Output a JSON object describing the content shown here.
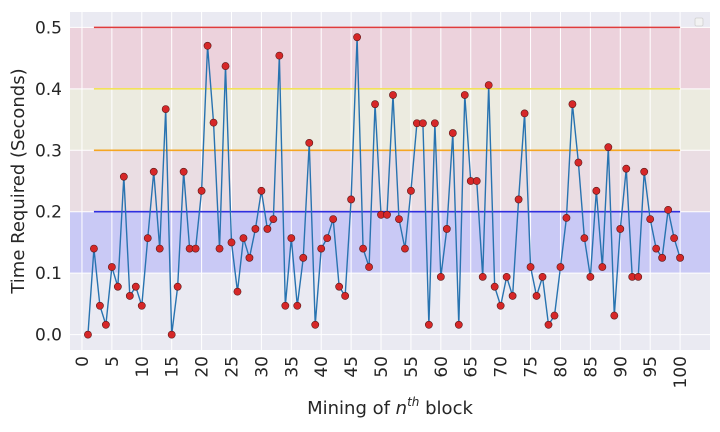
{
  "chart_data": {
    "type": "line",
    "title": "",
    "xlabel": "Mining of n^th block",
    "xlabel_parts": {
      "prefix": "Mining of ",
      "n": "n",
      "sup": "th",
      "suffix": " block"
    },
    "ylabel": "Time Required (Seconds)",
    "xlim": [
      -2,
      105
    ],
    "ylim": [
      -0.025,
      0.525
    ],
    "x_ticks": [
      0,
      5,
      10,
      15,
      20,
      25,
      30,
      35,
      40,
      45,
      50,
      55,
      60,
      65,
      70,
      75,
      80,
      85,
      90,
      95,
      100
    ],
    "y_ticks": [
      0.0,
      0.1,
      0.2,
      0.3,
      0.4,
      0.5
    ],
    "grid": true,
    "legend": "top-right",
    "line_color": "#2873b0",
    "marker_color": "#d62728",
    "bands": [
      {
        "from": 0.1,
        "to": 0.2,
        "color": "#c9c9f5"
      },
      {
        "from": 0.2,
        "to": 0.3,
        "color": "#eadde3"
      },
      {
        "from": 0.3,
        "to": 0.4,
        "color": "#ecebe0"
      },
      {
        "from": 0.4,
        "to": 0.5,
        "color": "#ecd2dc"
      }
    ],
    "thresholds": [
      {
        "y": 0.2,
        "color": "#2f2fe0"
      },
      {
        "y": 0.3,
        "color": "#f5a623"
      },
      {
        "y": 0.4,
        "color": "#f2e25a"
      },
      {
        "y": 0.5,
        "color": "#e03c3c"
      }
    ],
    "threshold_x": [
      2,
      100
    ],
    "x": [
      1,
      2,
      3,
      4,
      5,
      6,
      7,
      8,
      9,
      10,
      11,
      12,
      13,
      14,
      15,
      16,
      17,
      18,
      19,
      20,
      21,
      22,
      23,
      24,
      25,
      26,
      27,
      28,
      29,
      30,
      31,
      32,
      33,
      34,
      35,
      36,
      37,
      38,
      39,
      40,
      41,
      42,
      43,
      44,
      45,
      46,
      47,
      48,
      49,
      50,
      51,
      52,
      53,
      54,
      55,
      56,
      57,
      58,
      59,
      60,
      61,
      62,
      63,
      64,
      65,
      66,
      67,
      68,
      69,
      70,
      71,
      72,
      73,
      74,
      75,
      76,
      77,
      78,
      79,
      80,
      81,
      82,
      83,
      84,
      85,
      86,
      87,
      88,
      89,
      90,
      91,
      92,
      93,
      94,
      95,
      96,
      97,
      98,
      99,
      100
    ],
    "y": [
      0.0,
      0.14,
      0.047,
      0.016,
      0.11,
      0.078,
      0.257,
      0.063,
      0.078,
      0.047,
      0.157,
      0.265,
      0.14,
      0.367,
      0.0,
      0.078,
      0.265,
      0.14,
      0.14,
      0.234,
      0.47,
      0.345,
      0.14,
      0.437,
      0.15,
      0.07,
      0.157,
      0.125,
      0.172,
      0.234,
      0.172,
      0.188,
      0.454,
      0.047,
      0.157,
      0.047,
      0.125,
      0.312,
      0.016,
      0.14,
      0.157,
      0.188,
      0.078,
      0.063,
      0.22,
      0.484,
      0.14,
      0.11,
      0.375,
      0.195,
      0.195,
      0.39,
      0.188,
      0.14,
      0.234,
      0.344,
      0.344,
      0.016,
      0.344,
      0.094,
      0.172,
      0.328,
      0.016,
      0.39,
      0.25,
      0.25,
      0.094,
      0.406,
      0.078,
      0.047,
      0.094,
      0.063,
      0.22,
      0.36,
      0.11,
      0.063,
      0.094,
      0.016,
      0.031,
      0.11,
      0.19,
      0.375,
      0.28,
      0.157,
      0.094,
      0.234,
      0.11,
      0.305,
      0.031,
      0.172,
      0.27,
      0.094,
      0.094,
      0.265,
      0.188,
      0.14,
      0.125,
      0.203,
      0.157,
      0.125
    ]
  }
}
